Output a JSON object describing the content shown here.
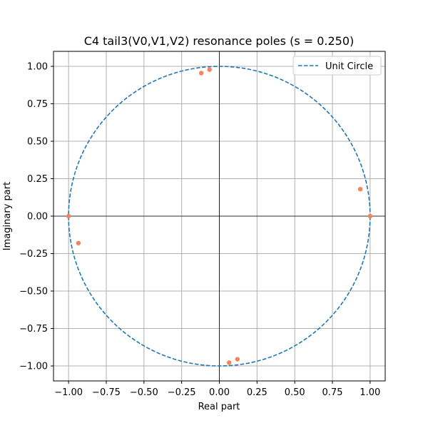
{
  "chart_data": {
    "type": "scatter",
    "title": "C4 tail3(V0,V1,V2) resonance poles (s = 0.250)",
    "xlabel": "Real part",
    "ylabel": "Imaginary part",
    "xlim": [
      -1.1,
      1.1
    ],
    "ylim": [
      -1.1,
      1.1
    ],
    "xticks": [
      -1.0,
      -0.75,
      -0.5,
      -0.25,
      0.0,
      0.25,
      0.5,
      0.75,
      1.0
    ],
    "yticks": [
      -1.0,
      -0.75,
      -0.5,
      -0.25,
      0.0,
      0.25,
      0.5,
      0.75,
      1.0
    ],
    "xtick_labels": [
      "−1.00",
      "−0.75",
      "−0.50",
      "−0.25",
      "0.00",
      "0.25",
      "0.50",
      "0.75",
      "1.00"
    ],
    "ytick_labels": [
      "−1.00",
      "−0.75",
      "−0.50",
      "−0.25",
      "0.00",
      "0.25",
      "0.50",
      "0.75",
      "1.00"
    ],
    "grid": true,
    "legend": {
      "location": "upper-right",
      "entries": [
        "Unit Circle"
      ]
    },
    "series": [
      {
        "name": "Unit Circle",
        "kind": "dashed-circle",
        "radius": 1.0,
        "color": "#1f77b4"
      },
      {
        "name": "Poles",
        "kind": "points",
        "color": "#f4845f",
        "points": [
          {
            "x": -0.12,
            "y": 0.955
          },
          {
            "x": -0.065,
            "y": 0.978
          },
          {
            "x": 0.935,
            "y": 0.18
          },
          {
            "x": 1.0,
            "y": 0.0
          },
          {
            "x": -1.0,
            "y": 0.0
          },
          {
            "x": -0.935,
            "y": -0.18
          },
          {
            "x": 0.065,
            "y": -0.978
          },
          {
            "x": 0.12,
            "y": -0.955
          }
        ]
      }
    ]
  }
}
